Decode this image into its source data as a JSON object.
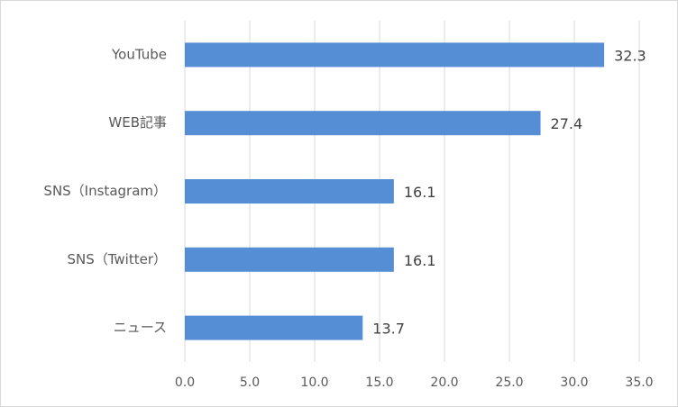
{
  "chart_data": {
    "type": "bar",
    "orientation": "horizontal",
    "categories": [
      "YouTube",
      "WEB記事",
      "SNS（Instagram）",
      "SNS（Twitter）",
      "ニュース"
    ],
    "values": [
      32.3,
      27.4,
      16.1,
      16.1,
      13.7
    ],
    "color": "#558ed5",
    "xlim": [
      0,
      35
    ],
    "xticks": [
      {
        "value": 0,
        "label": "0.0"
      },
      {
        "value": 5,
        "label": "5.0"
      },
      {
        "value": 10,
        "label": "10.0"
      },
      {
        "value": 15,
        "label": "15.0"
      },
      {
        "value": 20,
        "label": "20.0"
      },
      {
        "value": 25,
        "label": "25.0"
      },
      {
        "value": 30,
        "label": "30.0"
      },
      {
        "value": 35,
        "label": "35.0"
      }
    ],
    "grid": true
  }
}
